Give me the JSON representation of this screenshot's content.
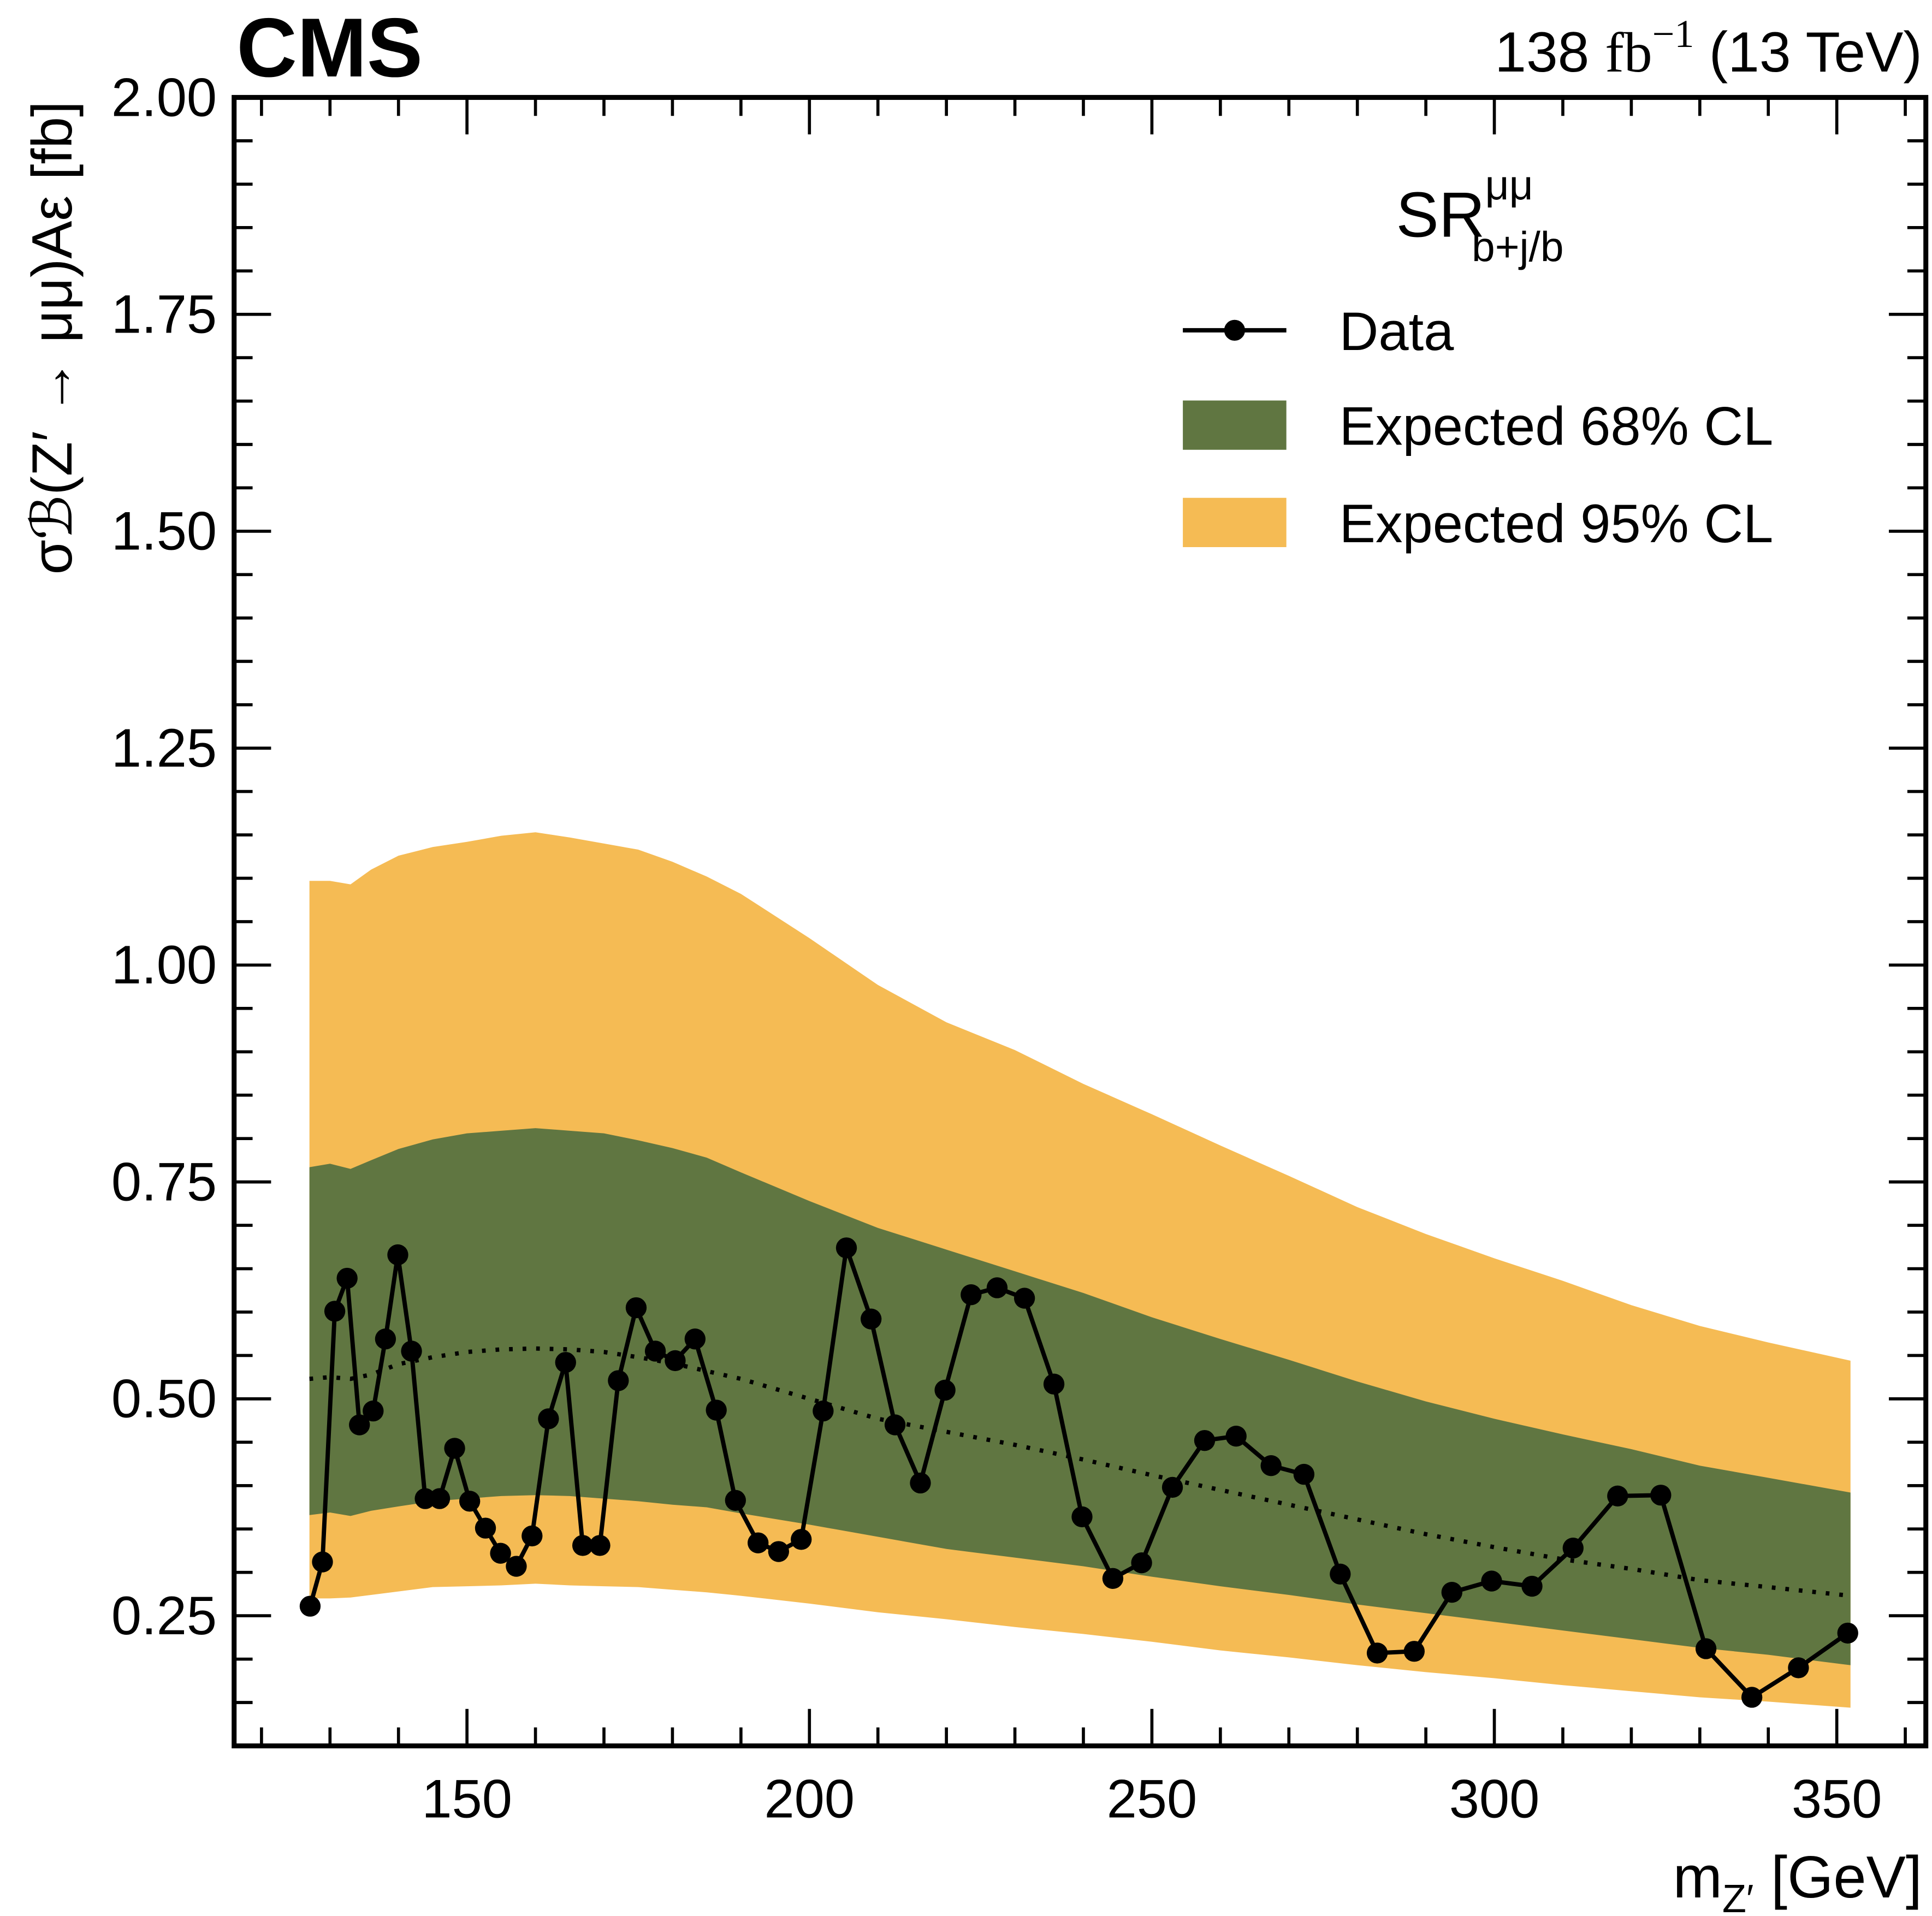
{
  "chart_data": {
    "type": "limit",
    "experiment": "CMS",
    "lumi": {
      "value": "138",
      "unit": "fb",
      "exp": "−1",
      "energy": "(13 TeV)"
    },
    "x_label": {
      "main": "m",
      "sub": "Z′",
      "unit": "[GeV]"
    },
    "y_label": "σℬ(Z′ → μμ)Aε [fb]",
    "region": {
      "main": "SR",
      "sup": "μμ",
      "sub": "b+j/b"
    },
    "xlim": [
      116,
      363
    ],
    "ylim": [
      0.1,
      2.0
    ],
    "xticks": [
      150,
      200,
      250,
      300,
      350
    ],
    "yticks": [
      0.25,
      {
        "value": 0.5,
        "label": "0.50"
      },
      0.75,
      {
        "value": 1,
        "label": "1.00"
      },
      1.25,
      {
        "value": 1.5,
        "label": "1.50"
      },
      1.75,
      {
        "value": 2,
        "label": "2.00"
      }
    ],
    "xminor_ticks": [
      120,
      130,
      140,
      160,
      170,
      180,
      190,
      210,
      220,
      230,
      240,
      260,
      270,
      280,
      290,
      310,
      320,
      330,
      340,
      360
    ],
    "yminor_ticks": [
      0.15,
      0.2,
      0.3,
      0.35,
      0.4,
      0.45,
      0.55,
      0.6,
      0.65,
      0.7,
      0.8,
      0.85,
      0.9,
      0.95,
      1.05,
      1.1,
      1.15,
      1.2,
      1.3,
      1.35,
      1.4,
      1.45,
      1.55,
      1.6,
      1.65,
      1.7,
      1.8,
      1.85,
      1.9,
      1.95
    ],
    "series": [
      {
        "name": "Data",
        "color": "#000000",
        "x": [
          127.1,
          128.9,
          130.7,
          132.5,
          134.3,
          136.3,
          138.1,
          139.9,
          141.9,
          143.9,
          146.0,
          148.2,
          150.4,
          152.7,
          154.9,
          157.2,
          159.5,
          161.9,
          164.4,
          166.9,
          169.4,
          172.1,
          174.7,
          177.5,
          180.4,
          183.3,
          186.4,
          189.2,
          192.5,
          195.5,
          198.8,
          202.0,
          205.4,
          209.0,
          212.5,
          216.2,
          219.8,
          223.6,
          227.4,
          231.4,
          235.7,
          239.8,
          244.3,
          248.5,
          253.0,
          257.7,
          262.3,
          267.4,
          272.2,
          277.5,
          282.9,
          288.3,
          293.8,
          299.6,
          305.5,
          311.5,
          318.0,
          324.3,
          330.9,
          337.6,
          344.4,
          351.6
        ],
        "values": [
          0.261,
          0.312,
          0.601,
          0.639,
          0.47,
          0.486,
          0.569,
          0.666,
          0.555,
          0.385,
          0.385,
          0.443,
          0.382,
          0.351,
          0.322,
          0.307,
          0.342,
          0.477,
          0.542,
          0.331,
          0.331,
          0.521,
          0.605,
          0.555,
          0.544,
          0.569,
          0.487,
          0.383,
          0.334,
          0.324,
          0.338,
          0.486,
          0.674,
          0.592,
          0.47,
          0.403,
          0.51,
          0.62,
          0.628,
          0.616,
          0.517,
          0.364,
          0.293,
          0.311,
          0.398,
          0.452,
          0.457,
          0.423,
          0.413,
          0.298,
          0.207,
          0.209,
          0.277,
          0.29,
          0.284,
          0.328,
          0.388,
          0.389,
          0.212,
          0.156,
          0.19,
          0.23
        ]
      }
    ],
    "bands": {
      "x": [
        127,
        130,
        133,
        136,
        140,
        145,
        150,
        155,
        160,
        165,
        170,
        175,
        180,
        185,
        190,
        200,
        210,
        220,
        230,
        240,
        250,
        260,
        270,
        280,
        290,
        300,
        310,
        320,
        330,
        340,
        352
      ],
      "expected_median": [
        0.523,
        0.525,
        0.523,
        0.528,
        0.54,
        0.548,
        0.554,
        0.557,
        0.558,
        0.557,
        0.554,
        0.548,
        0.541,
        0.532,
        0.523,
        0.5,
        0.477,
        0.462,
        0.447,
        0.43,
        0.412,
        0.395,
        0.378,
        0.361,
        0.344,
        0.329,
        0.315,
        0.304,
        0.291,
        0.283,
        0.273
      ],
      "band68": {
        "name": "Expected 68% CL",
        "color": "#607641",
        "upper": [
          0.767,
          0.771,
          0.765,
          0.775,
          0.788,
          0.799,
          0.806,
          0.809,
          0.812,
          0.809,
          0.806,
          0.798,
          0.789,
          0.778,
          0.761,
          0.728,
          0.697,
          0.672,
          0.647,
          0.622,
          0.594,
          0.569,
          0.545,
          0.52,
          0.497,
          0.477,
          0.459,
          0.442,
          0.423,
          0.409,
          0.392
        ],
        "lower": [
          0.366,
          0.369,
          0.365,
          0.371,
          0.376,
          0.382,
          0.385,
          0.388,
          0.389,
          0.388,
          0.385,
          0.382,
          0.378,
          0.375,
          0.368,
          0.355,
          0.341,
          0.327,
          0.317,
          0.307,
          0.295,
          0.284,
          0.274,
          0.263,
          0.253,
          0.243,
          0.233,
          0.223,
          0.213,
          0.205,
          0.193
        ]
      },
      "band95": {
        "name": "Expected 95% CL",
        "color": "#f5bb54",
        "upper": [
          1.097,
          1.097,
          1.093,
          1.11,
          1.126,
          1.136,
          1.142,
          1.149,
          1.153,
          1.147,
          1.14,
          1.133,
          1.119,
          1.102,
          1.082,
          1.031,
          0.977,
          0.934,
          0.902,
          0.863,
          0.828,
          0.792,
          0.757,
          0.721,
          0.69,
          0.662,
          0.636,
          0.608,
          0.584,
          0.565,
          0.544
        ],
        "lower": [
          0.27,
          0.27,
          0.271,
          0.274,
          0.278,
          0.283,
          0.284,
          0.285,
          0.287,
          0.285,
          0.284,
          0.283,
          0.28,
          0.277,
          0.273,
          0.264,
          0.254,
          0.246,
          0.237,
          0.229,
          0.22,
          0.21,
          0.202,
          0.193,
          0.185,
          0.178,
          0.17,
          0.163,
          0.156,
          0.151,
          0.144
        ]
      }
    }
  }
}
